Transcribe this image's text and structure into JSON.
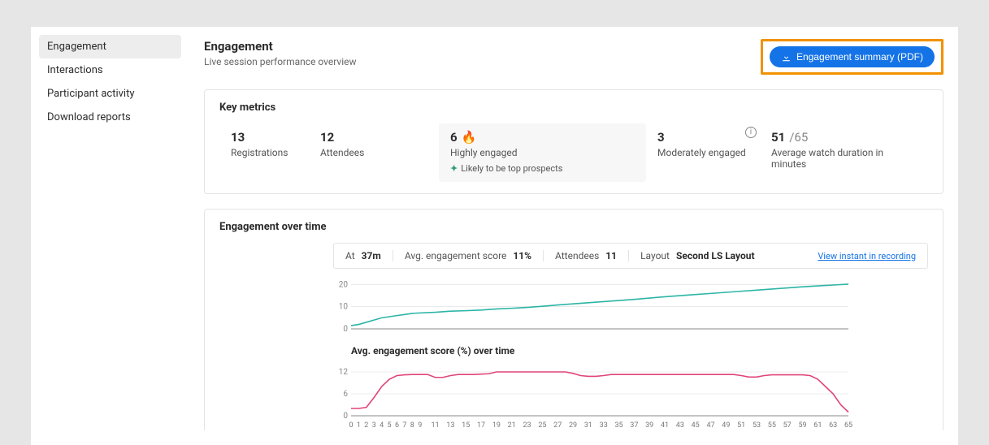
{
  "sidebar": {
    "items": [
      {
        "label": "Engagement",
        "active": true
      },
      {
        "label": "Interactions",
        "active": false
      },
      {
        "label": "Participant activity",
        "active": false
      },
      {
        "label": "Download reports",
        "active": false
      }
    ]
  },
  "header": {
    "title": "Engagement",
    "subtitle": "Live session performance overview",
    "pdf_button": "Engagement summary (PDF)"
  },
  "key_metrics": {
    "title": "Key metrics",
    "registrations": {
      "value": "13",
      "label": "Registrations"
    },
    "attendees": {
      "value": "12",
      "label": "Attendees"
    },
    "highly_engaged": {
      "value": "6",
      "label": "Highly engaged",
      "prospects": "Likely to be top prospects"
    },
    "moderately_engaged": {
      "value": "3",
      "label": "Moderately engaged"
    },
    "avg_watch": {
      "value": "51",
      "total": "/65",
      "label": "Average watch duration in minutes"
    }
  },
  "engagement_over_time": {
    "title": "Engagement over time",
    "stats": {
      "at": {
        "label": "At",
        "value": "37m"
      },
      "score": {
        "label": "Avg. engagement score",
        "value": "11%"
      },
      "attendees": {
        "label": "Attendees",
        "value": "11"
      },
      "layout": {
        "label": "Layout",
        "value": "Second LS Layout"
      }
    },
    "view_link": "View instant in recording",
    "chart1": {
      "color": "#2cb5a6",
      "yticks": [
        0,
        10,
        20
      ],
      "ymax": 22,
      "points": [
        [
          0,
          1.5
        ],
        [
          1,
          2
        ],
        [
          2,
          3
        ],
        [
          3,
          4
        ],
        [
          4,
          5
        ],
        [
          5,
          5.5
        ],
        [
          6,
          6
        ],
        [
          7,
          6.5
        ],
        [
          8,
          7
        ],
        [
          9,
          7.2
        ],
        [
          11,
          7.5
        ],
        [
          13,
          8
        ],
        [
          15,
          8.2
        ],
        [
          17,
          8.5
        ],
        [
          19,
          9
        ],
        [
          21,
          9.3
        ],
        [
          23,
          9.7
        ],
        [
          25,
          10.2
        ],
        [
          27,
          10.8
        ],
        [
          29,
          11.3
        ],
        [
          31,
          11.8
        ],
        [
          33,
          12.3
        ],
        [
          35,
          12.8
        ],
        [
          37,
          13.3
        ],
        [
          39,
          13.9
        ],
        [
          41,
          14.5
        ],
        [
          43,
          15
        ],
        [
          45,
          15.5
        ],
        [
          47,
          16
        ],
        [
          49,
          16.5
        ],
        [
          51,
          17
        ],
        [
          53,
          17.5
        ],
        [
          55,
          18
        ],
        [
          57,
          18.5
        ],
        [
          59,
          19
        ],
        [
          61,
          19.4
        ],
        [
          63,
          19.8
        ],
        [
          65,
          20.2
        ]
      ]
    },
    "chart2": {
      "title": "Avg. engagement score (%) over time",
      "color": "#e0457b",
      "yticks": [
        0,
        6,
        12
      ],
      "ymax": 14,
      "xticks": [
        0,
        1,
        2,
        3,
        4,
        5,
        6,
        7,
        8,
        9,
        11,
        13,
        15,
        17,
        19,
        21,
        23,
        25,
        27,
        29,
        31,
        33,
        35,
        37,
        39,
        41,
        43,
        45,
        47,
        49,
        51,
        53,
        55,
        57,
        59,
        61,
        63,
        65
      ],
      "points": [
        [
          0,
          2
        ],
        [
          1,
          2
        ],
        [
          2,
          2.3
        ],
        [
          3,
          5
        ],
        [
          4,
          8
        ],
        [
          5,
          10
        ],
        [
          6,
          11
        ],
        [
          7,
          11.2
        ],
        [
          8,
          11.3
        ],
        [
          9,
          11.3
        ],
        [
          10,
          11.3
        ],
        [
          11,
          10.5
        ],
        [
          12,
          10.5
        ],
        [
          13,
          11
        ],
        [
          14,
          11.3
        ],
        [
          15,
          11.3
        ],
        [
          16,
          11.3
        ],
        [
          17,
          11.4
        ],
        [
          18,
          11.5
        ],
        [
          19,
          12
        ],
        [
          20,
          12
        ],
        [
          21,
          12
        ],
        [
          22,
          12
        ],
        [
          23,
          12
        ],
        [
          24,
          12
        ],
        [
          25,
          12
        ],
        [
          26,
          12
        ],
        [
          27,
          12
        ],
        [
          28,
          12
        ],
        [
          29,
          11.6
        ],
        [
          30,
          11
        ],
        [
          31,
          10.8
        ],
        [
          32,
          10.8
        ],
        [
          33,
          11
        ],
        [
          34,
          11.3
        ],
        [
          35,
          11.3
        ],
        [
          36,
          11.3
        ],
        [
          37,
          11.3
        ],
        [
          38,
          11.3
        ],
        [
          39,
          11.3
        ],
        [
          40,
          11.3
        ],
        [
          41,
          11.3
        ],
        [
          42,
          11.3
        ],
        [
          43,
          11.3
        ],
        [
          44,
          11.3
        ],
        [
          45,
          11.3
        ],
        [
          46,
          11.3
        ],
        [
          47,
          11.3
        ],
        [
          48,
          11.3
        ],
        [
          49,
          11.3
        ],
        [
          50,
          11.3
        ],
        [
          51,
          11
        ],
        [
          52,
          10.6
        ],
        [
          53,
          10.6
        ],
        [
          54,
          11
        ],
        [
          55,
          11.2
        ],
        [
          56,
          11.2
        ],
        [
          57,
          11.2
        ],
        [
          58,
          11.2
        ],
        [
          59,
          11.2
        ],
        [
          60,
          11
        ],
        [
          61,
          10
        ],
        [
          62,
          8
        ],
        [
          63,
          6
        ],
        [
          64,
          3
        ],
        [
          65,
          1
        ]
      ]
    }
  }
}
